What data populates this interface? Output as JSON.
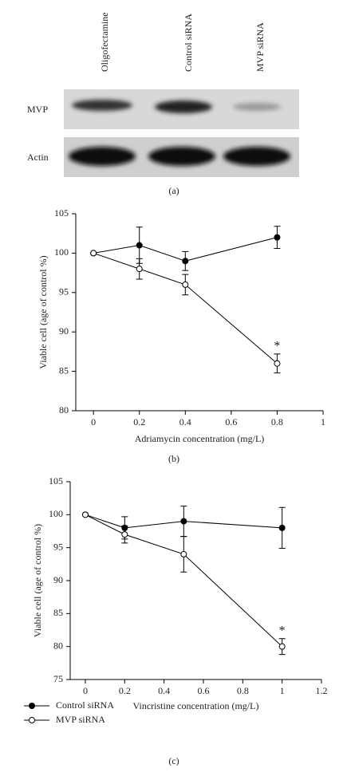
{
  "blot": {
    "lanes": [
      "Oligofectamine",
      "Control siRNA",
      "MVP siRNA"
    ],
    "rows": [
      "MVP",
      "Actin"
    ],
    "panel_label": "(a)"
  },
  "chart_data": [
    {
      "type": "line",
      "panel_label": "(b)",
      "x_label": "Adriamycin concentration (mg/L)",
      "y_label": "Viable cell (age of control %)",
      "x": [
        0,
        0.2,
        0.4,
        0.8
      ],
      "xlim": [
        -0.077,
        1
      ],
      "xticks": [
        0,
        0.2,
        0.4,
        0.6,
        0.8,
        1
      ],
      "ylim": [
        80,
        105
      ],
      "yticks": [
        80,
        85,
        90,
        95,
        100,
        105
      ],
      "series": [
        {
          "color": "#000000",
          "marker_fill": "#000000",
          "values": [
            100,
            101,
            99,
            102
          ],
          "errors": [
            0,
            2.3,
            1.2,
            1.4
          ]
        },
        {
          "color": "#000000",
          "marker_fill": "#ffffff",
          "values": [
            100,
            98,
            96,
            86
          ],
          "errors": [
            0,
            1.3,
            1.3,
            1.2
          ]
        }
      ],
      "annotation": {
        "text": "*",
        "series": 1,
        "index": 3
      }
    },
    {
      "type": "line",
      "panel_label": "(c)",
      "x_label": "Vincristine concentration (mg/L)",
      "y_label": "Viable cell (age of control %)",
      "x": [
        0,
        0.2,
        0.5,
        1
      ],
      "xlim": [
        -0.077,
        1.2
      ],
      "xticks": [
        0,
        0.2,
        0.4,
        0.6,
        0.8,
        1,
        1.2
      ],
      "ylim": [
        75,
        105
      ],
      "yticks": [
        75,
        80,
        85,
        90,
        95,
        100,
        105
      ],
      "legend": "bottom-left",
      "series": [
        {
          "name": "Control siRNA",
          "color": "#000000",
          "marker_fill": "#000000",
          "values": [
            100,
            98,
            99,
            98
          ],
          "errors": [
            0,
            1.7,
            2.3,
            3.1
          ]
        },
        {
          "name": "MVP siRNA",
          "color": "#000000",
          "marker_fill": "#ffffff",
          "values": [
            100,
            97,
            94,
            80
          ],
          "errors": [
            0,
            1.3,
            2.7,
            1.2
          ]
        }
      ],
      "annotation": {
        "text": "*",
        "series": 1,
        "index": 3
      }
    }
  ]
}
